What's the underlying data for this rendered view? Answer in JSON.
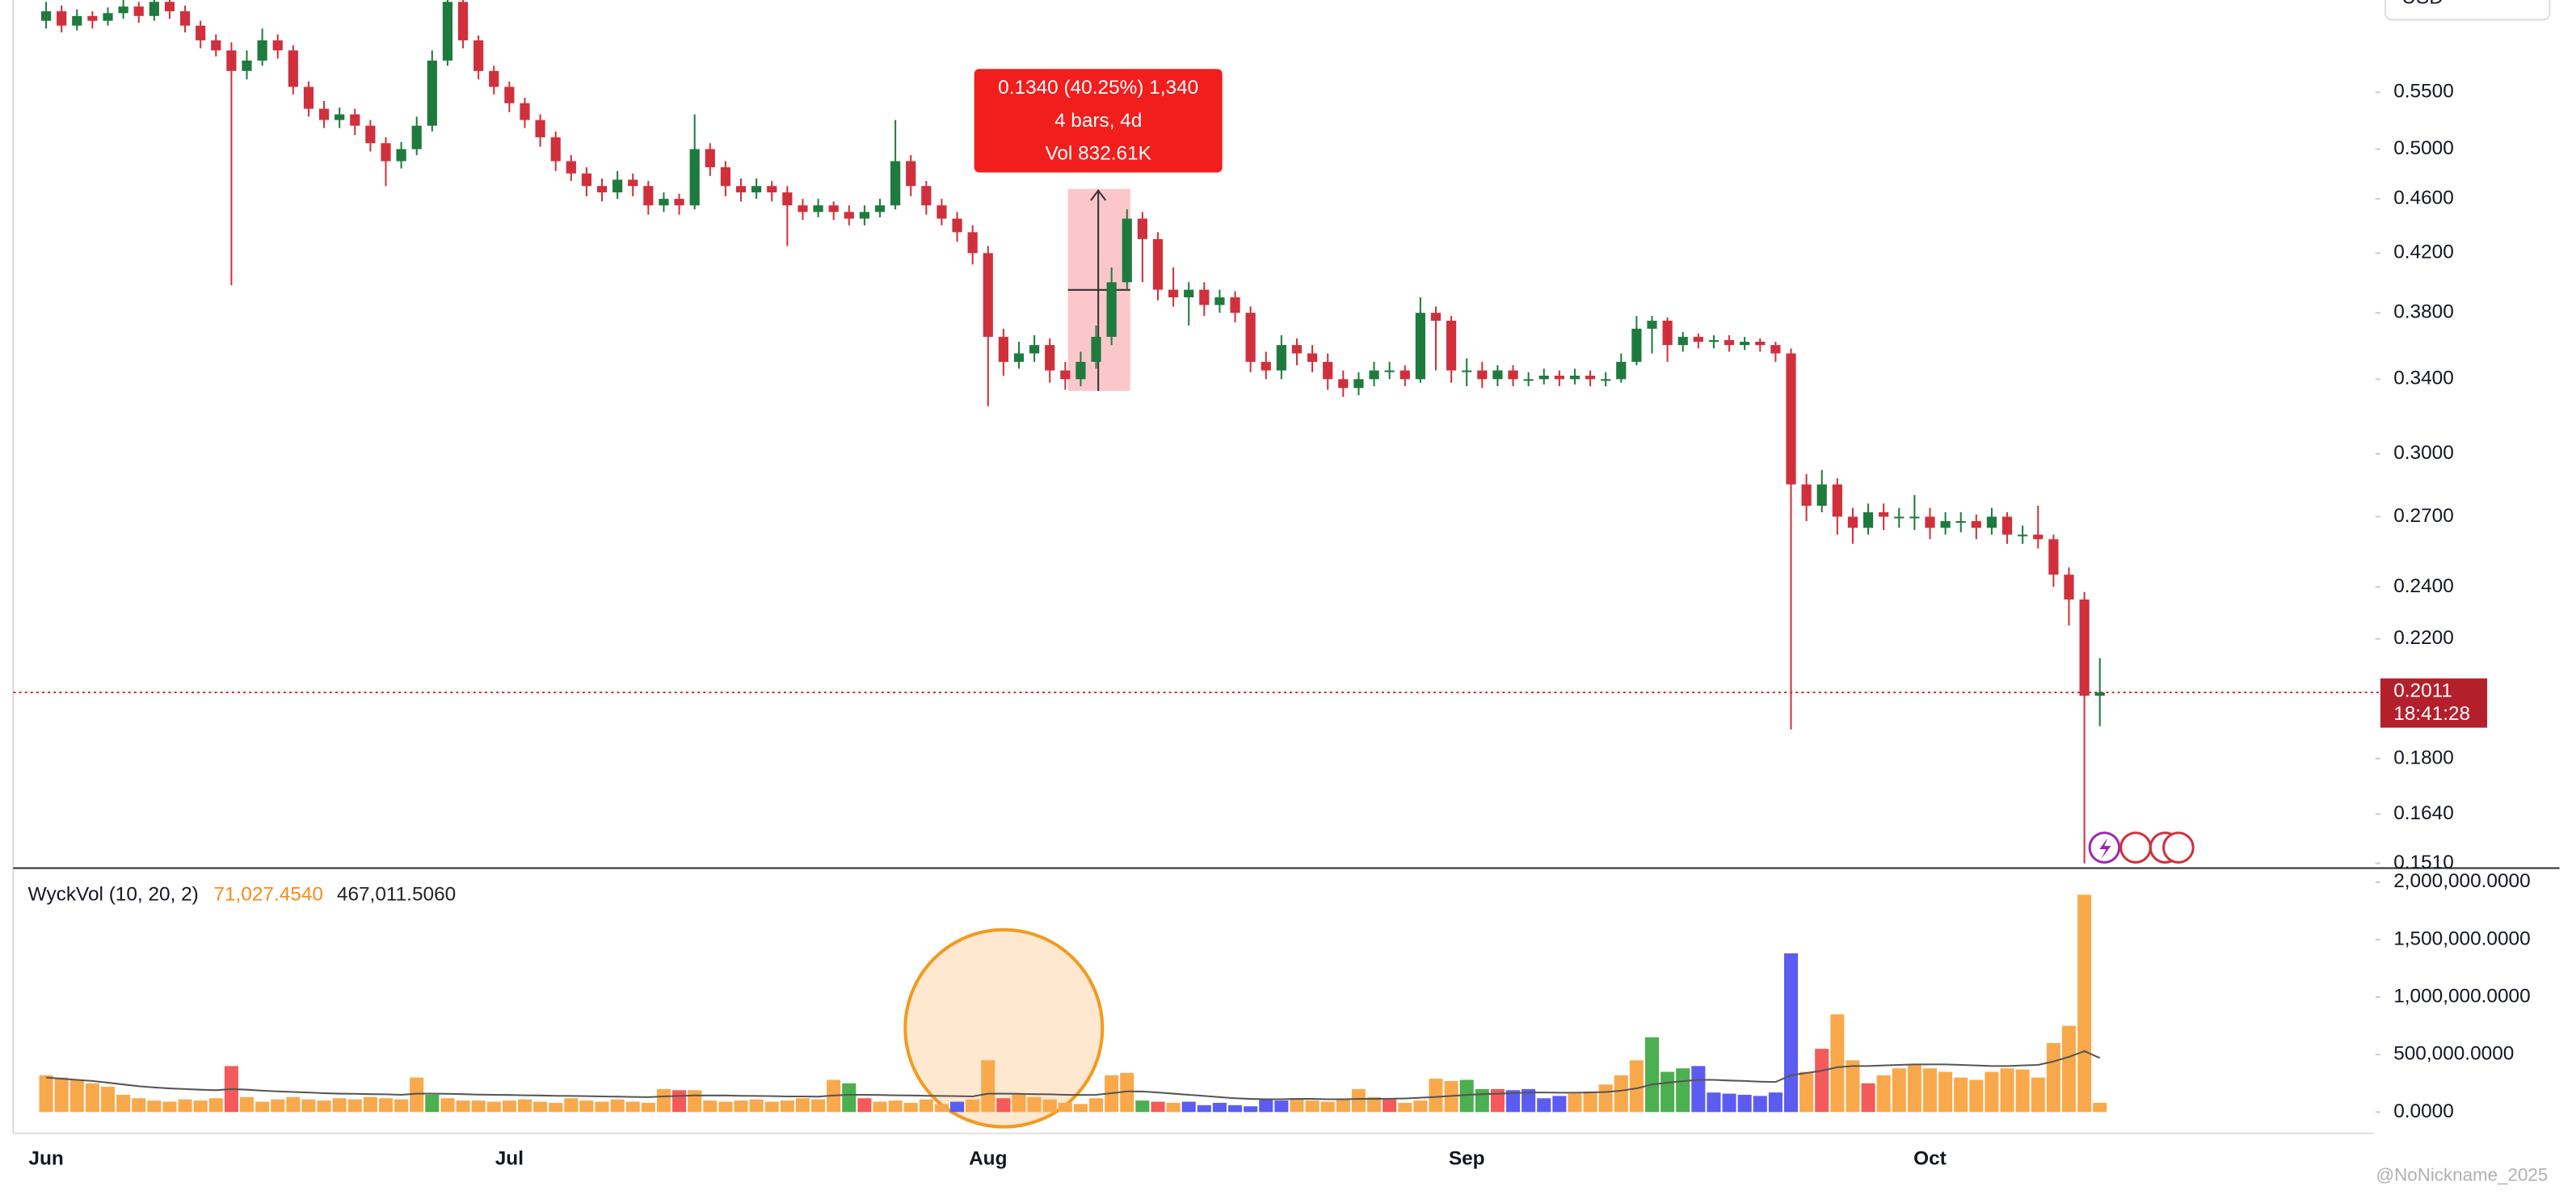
{
  "chart_data": [
    {
      "type": "candlestick",
      "currency": "USD",
      "log_scale": true,
      "up_color": "#1f7a3e",
      "down_color": "#d0303c",
      "categories": [
        "Jun",
        null,
        null,
        null,
        null,
        null,
        null,
        null,
        null,
        null,
        null,
        null,
        null,
        null,
        null,
        null,
        null,
        null,
        null,
        null,
        null,
        null,
        null,
        null,
        null,
        null,
        null,
        null,
        null,
        null,
        "Jul",
        null,
        null,
        null,
        null,
        null,
        null,
        null,
        null,
        null,
        null,
        null,
        null,
        null,
        null,
        null,
        null,
        null,
        null,
        null,
        null,
        null,
        null,
        null,
        null,
        null,
        null,
        null,
        null,
        null,
        null,
        "Aug",
        null,
        null,
        null,
        null,
        null,
        null,
        null,
        null,
        null,
        null,
        null,
        null,
        null,
        null,
        null,
        null,
        null,
        null,
        null,
        null,
        null,
        null,
        null,
        null,
        null,
        null,
        null,
        null,
        null,
        null,
        "Sep",
        null,
        null,
        null,
        null,
        null,
        null,
        null,
        null,
        null,
        null,
        null,
        null,
        null,
        null,
        null,
        null,
        null,
        null,
        null,
        null,
        null,
        null,
        null,
        null,
        null,
        null,
        null,
        null,
        null,
        "Oct",
        null,
        null,
        null,
        null,
        null,
        null,
        null,
        null,
        null,
        null,
        null
      ],
      "open": [
        0.62,
        0.63,
        0.615,
        0.625,
        0.62,
        0.628,
        0.635,
        0.625,
        0.64,
        0.63,
        0.615,
        0.6,
        0.59,
        0.57,
        0.58,
        0.6,
        0.59,
        0.555,
        0.535,
        0.525,
        0.53,
        0.52,
        0.505,
        0.49,
        0.5,
        0.52,
        0.58,
        0.64,
        0.6,
        0.57,
        0.555,
        0.54,
        0.525,
        0.51,
        0.49,
        0.48,
        0.47,
        0.465,
        0.475,
        0.47,
        0.455,
        0.46,
        0.455,
        0.5,
        0.485,
        0.47,
        0.465,
        0.47,
        0.465,
        0.455,
        0.45,
        0.455,
        0.45,
        0.445,
        0.45,
        0.455,
        0.49,
        0.47,
        0.455,
        0.445,
        0.435,
        0.42,
        0.365,
        0.35,
        0.355,
        0.36,
        0.345,
        0.34,
        0.35,
        0.365,
        0.4,
        0.445,
        0.43,
        0.395,
        0.39,
        0.395,
        0.385,
        0.39,
        0.38,
        0.35,
        0.345,
        0.36,
        0.355,
        0.35,
        0.34,
        0.335,
        0.34,
        0.345,
        0.345,
        0.34,
        0.38,
        0.375,
        0.345,
        0.345,
        0.34,
        0.345,
        0.34,
        0.34,
        0.342,
        0.34,
        0.342,
        0.34,
        0.34,
        0.35,
        0.37,
        0.375,
        0.36,
        0.365,
        0.362,
        0.363,
        0.36,
        0.362,
        0.36,
        0.355,
        0.285,
        0.275,
        0.285,
        0.27,
        0.265,
        0.272,
        0.27,
        0.27,
        0.27,
        0.265,
        0.268,
        0.268,
        0.265,
        0.27,
        0.262,
        0.262,
        0.26,
        0.245,
        0.235,
        0.2
      ],
      "high": [
        0.64,
        0.636,
        0.632,
        0.63,
        0.634,
        0.642,
        0.64,
        0.648,
        0.645,
        0.636,
        0.62,
        0.606,
        0.598,
        0.59,
        0.612,
        0.606,
        0.595,
        0.56,
        0.542,
        0.536,
        0.535,
        0.525,
        0.51,
        0.506,
        0.528,
        0.59,
        0.65,
        0.645,
        0.605,
        0.575,
        0.56,
        0.545,
        0.53,
        0.515,
        0.495,
        0.485,
        0.476,
        0.482,
        0.48,
        0.474,
        0.465,
        0.464,
        0.53,
        0.505,
        0.49,
        0.476,
        0.476,
        0.474,
        0.47,
        0.46,
        0.46,
        0.458,
        0.455,
        0.455,
        0.46,
        0.525,
        0.495,
        0.474,
        0.46,
        0.45,
        0.44,
        0.425,
        0.37,
        0.362,
        0.366,
        0.364,
        0.35,
        0.356,
        0.372,
        0.41,
        0.452,
        0.45,
        0.435,
        0.41,
        0.4,
        0.4,
        0.395,
        0.394,
        0.384,
        0.356,
        0.366,
        0.364,
        0.36,
        0.355,
        0.345,
        0.344,
        0.35,
        0.35,
        0.348,
        0.39,
        0.384,
        0.378,
        0.352,
        0.35,
        0.348,
        0.348,
        0.344,
        0.346,
        0.345,
        0.346,
        0.345,
        0.344,
        0.355,
        0.378,
        0.378,
        0.377,
        0.368,
        0.367,
        0.366,
        0.366,
        0.365,
        0.364,
        0.362,
        0.358,
        0.29,
        0.292,
        0.288,
        0.274,
        0.276,
        0.276,
        0.274,
        0.28,
        0.274,
        0.272,
        0.272,
        0.271,
        0.274,
        0.272,
        0.266,
        0.275,
        0.262,
        0.248,
        0.238,
        0.213
      ],
      "low": [
        0.612,
        0.608,
        0.61,
        0.612,
        0.615,
        0.622,
        0.618,
        0.62,
        0.622,
        0.608,
        0.592,
        0.584,
        0.398,
        0.562,
        0.575,
        0.582,
        0.548,
        0.528,
        0.518,
        0.518,
        0.512,
        0.498,
        0.47,
        0.484,
        0.495,
        0.515,
        0.575,
        0.592,
        0.562,
        0.548,
        0.532,
        0.518,
        0.502,
        0.482,
        0.474,
        0.462,
        0.458,
        0.46,
        0.462,
        0.448,
        0.45,
        0.448,
        0.452,
        0.478,
        0.462,
        0.458,
        0.46,
        0.458,
        0.425,
        0.444,
        0.446,
        0.444,
        0.44,
        0.44,
        0.446,
        0.452,
        0.462,
        0.448,
        0.44,
        0.428,
        0.412,
        0.325,
        0.342,
        0.346,
        0.35,
        0.338,
        0.334,
        0.336,
        0.346,
        0.36,
        0.395,
        0.4,
        0.388,
        0.384,
        0.372,
        0.378,
        0.38,
        0.374,
        0.344,
        0.34,
        0.34,
        0.348,
        0.344,
        0.334,
        0.33,
        0.331,
        0.336,
        0.34,
        0.336,
        0.338,
        0.345,
        0.338,
        0.336,
        0.335,
        0.336,
        0.336,
        0.336,
        0.337,
        0.336,
        0.337,
        0.336,
        0.336,
        0.338,
        0.348,
        0.355,
        0.35,
        0.356,
        0.358,
        0.358,
        0.356,
        0.357,
        0.356,
        0.35,
        0.189,
        0.268,
        0.272,
        0.262,
        0.258,
        0.262,
        0.264,
        0.265,
        0.264,
        0.26,
        0.262,
        0.263,
        0.26,
        0.262,
        0.258,
        0.258,
        0.256,
        0.24,
        0.225,
        0.151,
        0.19
      ],
      "close": [
        0.63,
        0.615,
        0.625,
        0.62,
        0.628,
        0.635,
        0.625,
        0.64,
        0.63,
        0.615,
        0.6,
        0.59,
        0.57,
        0.58,
        0.6,
        0.59,
        0.555,
        0.535,
        0.525,
        0.53,
        0.52,
        0.505,
        0.49,
        0.5,
        0.52,
        0.58,
        0.64,
        0.6,
        0.57,
        0.555,
        0.54,
        0.525,
        0.51,
        0.49,
        0.48,
        0.47,
        0.465,
        0.475,
        0.47,
        0.455,
        0.46,
        0.455,
        0.5,
        0.485,
        0.47,
        0.465,
        0.47,
        0.465,
        0.455,
        0.45,
        0.455,
        0.45,
        0.445,
        0.45,
        0.455,
        0.49,
        0.47,
        0.455,
        0.445,
        0.435,
        0.42,
        0.365,
        0.35,
        0.355,
        0.36,
        0.345,
        0.34,
        0.35,
        0.365,
        0.4,
        0.445,
        0.43,
        0.395,
        0.39,
        0.395,
        0.385,
        0.39,
        0.38,
        0.35,
        0.345,
        0.36,
        0.355,
        0.35,
        0.34,
        0.335,
        0.34,
        0.345,
        0.345,
        0.34,
        0.38,
        0.375,
        0.345,
        0.345,
        0.34,
        0.345,
        0.34,
        0.34,
        0.342,
        0.34,
        0.342,
        0.34,
        0.34,
        0.35,
        0.37,
        0.375,
        0.36,
        0.365,
        0.362,
        0.363,
        0.36,
        0.362,
        0.36,
        0.355,
        0.285,
        0.275,
        0.285,
        0.27,
        0.265,
        0.272,
        0.27,
        0.27,
        0.27,
        0.265,
        0.268,
        0.268,
        0.265,
        0.27,
        0.262,
        0.262,
        0.26,
        0.245,
        0.235,
        0.2,
        0.2011
      ],
      "ylim": [
        0.15,
        0.642
      ],
      "yticks": [
        {
          "value": 0.151,
          "label": "0.1510"
        },
        {
          "value": 0.164,
          "label": "0.1640"
        },
        {
          "value": 0.18,
          "label": "0.1800"
        },
        {
          "value": 0.22,
          "label": "0.2200"
        },
        {
          "value": 0.24,
          "label": "0.2400"
        },
        {
          "value": 0.27,
          "label": "0.2700"
        },
        {
          "value": 0.3,
          "label": "0.3000"
        },
        {
          "value": 0.34,
          "label": "0.3400"
        },
        {
          "value": 0.38,
          "label": "0.3800"
        },
        {
          "value": 0.42,
          "label": "0.4200"
        },
        {
          "value": 0.46,
          "label": "0.4600"
        },
        {
          "value": 0.5,
          "label": "0.5000"
        },
        {
          "value": 0.55,
          "label": "0.5500"
        }
      ],
      "price_line": 0.2011,
      "price_line_label": "0.2011",
      "countdown": "18:41:28",
      "measure": {
        "line1": "0.1340 (40.25%) 1,340",
        "line2": "4 bars, 4d",
        "line3": "Vol 832.61K"
      },
      "watermark": "@NoNickname_2025"
    },
    {
      "type": "bar",
      "name": "WyckVol (10, 20, 2)",
      "legend_values": [
        "71,027.4540",
        "467,011.5060"
      ],
      "legend_colors": [
        "#f28c1e",
        "#222222"
      ],
      "palette": {
        "o": "#f9a94b",
        "g": "#4caf50",
        "r": "#f55a5a",
        "b": "#5c5cf2"
      },
      "color_keys": "ooooooooooooroooooooooooogoooooooooooooooroooooooooogrooooobooroooooooogrobbbbbbboooooorooooggrbbbbooooogggbbbbbbboroorooooooooooooooorо",
      "values": [
        320000,
        300000,
        280000,
        250000,
        220000,
        150000,
        120000,
        100000,
        90000,
        110000,
        100000,
        120000,
        400000,
        130000,
        90000,
        110000,
        130000,
        110000,
        100000,
        120000,
        110000,
        130000,
        120000,
        110000,
        300000,
        150000,
        120000,
        100000,
        100000,
        90000,
        100000,
        110000,
        90000,
        80000,
        120000,
        100000,
        90000,
        110000,
        90000,
        80000,
        200000,
        190000,
        190000,
        100000,
        90000,
        100000,
        110000,
        90000,
        100000,
        120000,
        110000,
        280000,
        250000,
        120000,
        90000,
        100000,
        80000,
        110000,
        70000,
        90000,
        110000,
        450000,
        120000,
        160000,
        130000,
        110000,
        80000,
        70000,
        120000,
        320000,
        340000,
        100000,
        90000,
        80000,
        90000,
        60000,
        80000,
        60000,
        50000,
        110000,
        100000,
        120000,
        100000,
        90000,
        110000,
        200000,
        130000,
        110000,
        80000,
        100000,
        290000,
        270000,
        280000,
        200000,
        200000,
        190000,
        200000,
        120000,
        140000,
        160000,
        180000,
        240000,
        320000,
        450000,
        650000,
        350000,
        380000,
        400000,
        170000,
        160000,
        150000,
        140000,
        170000,
        1380000,
        350000,
        550000,
        850000,
        450000,
        250000,
        320000,
        380000,
        420000,
        380000,
        350000,
        300000,
        280000,
        350000,
        380000,
        370000,
        300000,
        600000,
        750000,
        1890000,
        80000
      ],
      "ma": {
        "color": "#555555",
        "values": [
          300000,
          290000,
          280000,
          270000,
          255000,
          240000,
          225000,
          215000,
          205000,
          200000,
          195000,
          190000,
          200000,
          195000,
          185000,
          180000,
          175000,
          170000,
          165000,
          160000,
          158000,
          156000,
          154000,
          150000,
          160000,
          160000,
          158000,
          155000,
          152000,
          150000,
          148000,
          146000,
          144000,
          142000,
          140000,
          138000,
          136000,
          134000,
          132000,
          130000,
          135000,
          140000,
          145000,
          145000,
          144000,
          142000,
          140000,
          138000,
          136000,
          135000,
          134000,
          145000,
          150000,
          150000,
          148000,
          146000,
          144000,
          142000,
          140000,
          138000,
          136000,
          160000,
          160000,
          158000,
          156000,
          154000,
          150000,
          148000,
          150000,
          165000,
          180000,
          178000,
          170000,
          160000,
          150000,
          140000,
          130000,
          120000,
          115000,
          112000,
          112000,
          115000,
          115000,
          112000,
          112000,
          114000,
          115000,
          116000,
          118000,
          125000,
          132000,
          140000,
          148000,
          155000,
          160000,
          165000,
          170000,
          170000,
          168000,
          168000,
          170000,
          175000,
          185000,
          205000,
          240000,
          255000,
          268000,
          280000,
          280000,
          275000,
          270000,
          265000,
          262000,
          320000,
          340000,
          360000,
          390000,
          400000,
          400000,
          405000,
          410000,
          415000,
          415000,
          415000,
          410000,
          405000,
          400000,
          400000,
          405000,
          410000,
          440000,
          480000,
          530000,
          470000
        ]
      },
      "ylim": [
        0,
        2000000
      ],
      "yticks": [
        {
          "value": 0,
          "label": "0.0000"
        },
        {
          "value": 500000,
          "label": "500,000.0000"
        },
        {
          "value": 1000000,
          "label": "1,000,000.0000"
        },
        {
          "value": 1500000,
          "label": "1,500,000.0000"
        },
        {
          "value": 2000000,
          "label": "2,000,000.0000"
        }
      ]
    }
  ]
}
